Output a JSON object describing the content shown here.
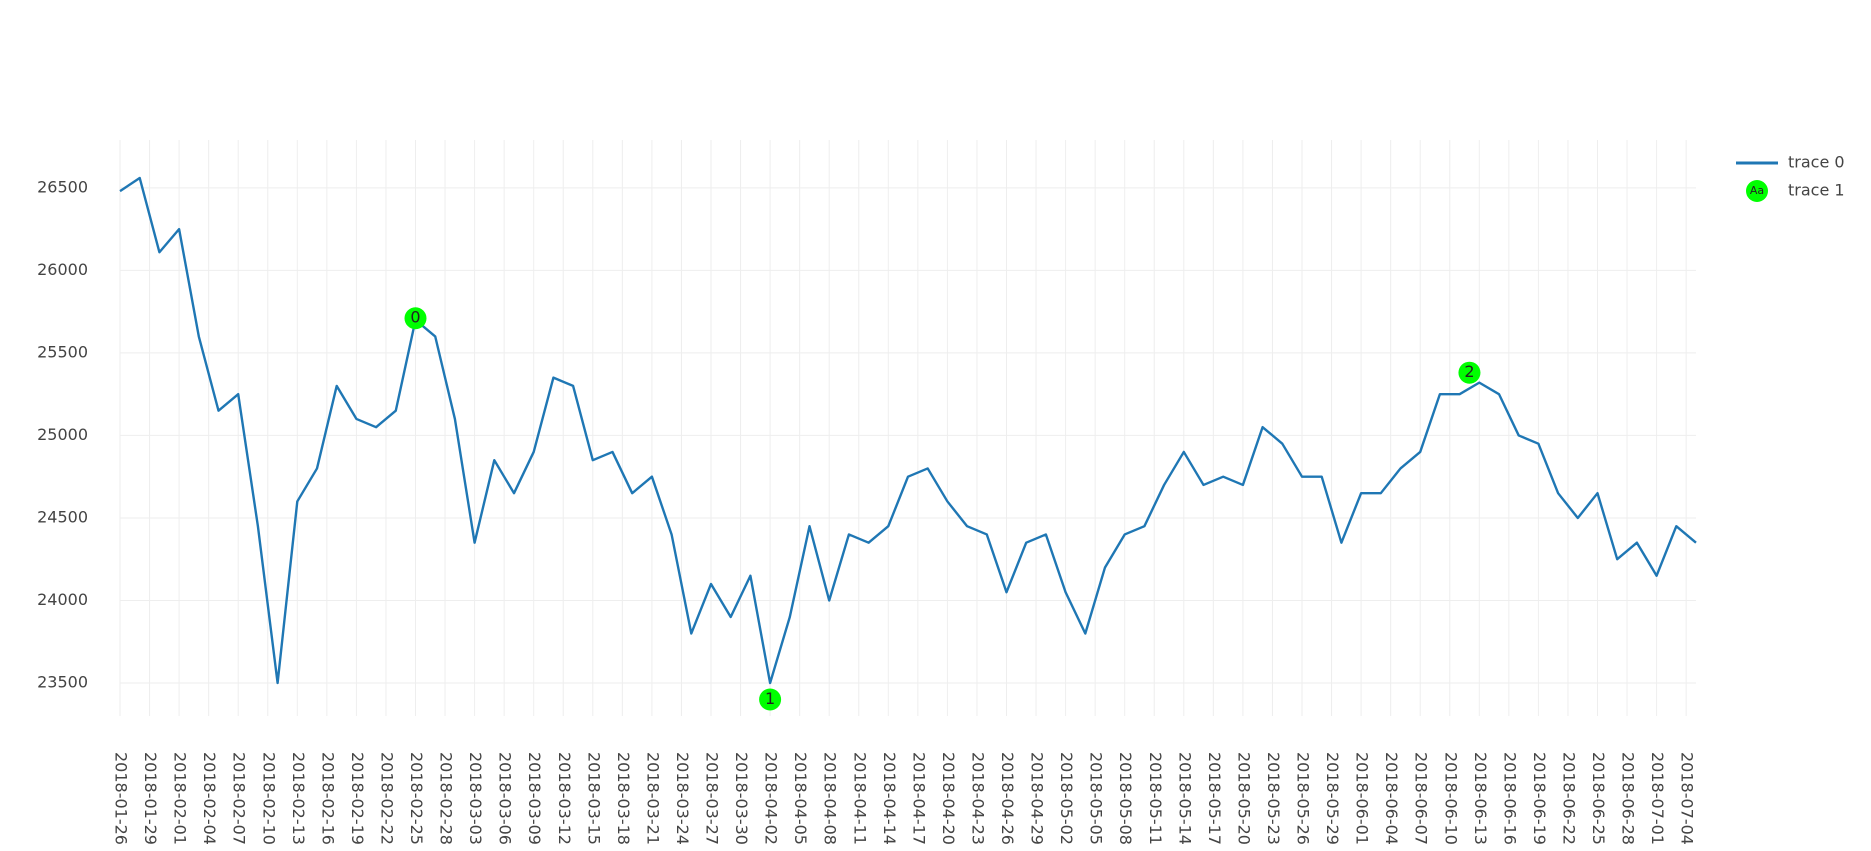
{
  "chart_data": {
    "type": "line",
    "xlim": [
      "2018-01-26",
      "2018-07-05"
    ],
    "xticks": [
      "2018-01-26",
      "2018-01-29",
      "2018-02-01",
      "2018-02-04",
      "2018-02-07",
      "2018-02-10",
      "2018-02-13",
      "2018-02-16",
      "2018-02-19",
      "2018-02-22",
      "2018-02-25",
      "2018-02-28",
      "2018-03-03",
      "2018-03-06",
      "2018-03-09",
      "2018-03-12",
      "2018-03-15",
      "2018-03-18",
      "2018-03-21",
      "2018-03-24",
      "2018-03-27",
      "2018-03-30",
      "2018-04-02",
      "2018-04-05",
      "2018-04-08",
      "2018-04-11",
      "2018-04-14",
      "2018-04-17",
      "2018-04-20",
      "2018-04-23",
      "2018-04-26",
      "2018-04-29",
      "2018-05-02",
      "2018-05-05",
      "2018-05-08",
      "2018-05-11",
      "2018-05-14",
      "2018-05-17",
      "2018-05-20",
      "2018-05-23",
      "2018-05-26",
      "2018-05-29",
      "2018-06-01",
      "2018-06-04",
      "2018-06-07",
      "2018-06-10",
      "2018-06-13",
      "2018-06-16",
      "2018-06-19",
      "2018-06-22",
      "2018-06-25",
      "2018-06-28",
      "2018-07-01",
      "2018-07-04"
    ],
    "ylim": [
      23300,
      26790
    ],
    "yticks": [
      23500,
      24000,
      24500,
      25000,
      25500,
      26000,
      26500
    ],
    "grid": true,
    "legend": "right",
    "series": [
      {
        "name": "trace 0",
        "mode": "lines",
        "color": "#1f77b4",
        "x": [
          "2018-01-26",
          "2018-01-28",
          "2018-01-30",
          "2018-02-01",
          "2018-02-03",
          "2018-02-05",
          "2018-02-07",
          "2018-02-09",
          "2018-02-11",
          "2018-02-13",
          "2018-02-15",
          "2018-02-17",
          "2018-02-19",
          "2018-02-21",
          "2018-02-23",
          "2018-02-25",
          "2018-02-27",
          "2018-03-01",
          "2018-03-03",
          "2018-03-05",
          "2018-03-07",
          "2018-03-09",
          "2018-03-11",
          "2018-03-13",
          "2018-03-15",
          "2018-03-17",
          "2018-03-19",
          "2018-03-21",
          "2018-03-23",
          "2018-03-25",
          "2018-03-27",
          "2018-03-29",
          "2018-03-31",
          "2018-04-02",
          "2018-04-04",
          "2018-04-06",
          "2018-04-08",
          "2018-04-10",
          "2018-04-12",
          "2018-04-14",
          "2018-04-16",
          "2018-04-18",
          "2018-04-20",
          "2018-04-22",
          "2018-04-24",
          "2018-04-26",
          "2018-04-28",
          "2018-04-30",
          "2018-05-02",
          "2018-05-04",
          "2018-05-06",
          "2018-05-08",
          "2018-05-10",
          "2018-05-12",
          "2018-05-14",
          "2018-05-16",
          "2018-05-18",
          "2018-05-20",
          "2018-05-22",
          "2018-05-24",
          "2018-05-26",
          "2018-05-28",
          "2018-05-30",
          "2018-06-01",
          "2018-06-03",
          "2018-06-05",
          "2018-06-07",
          "2018-06-09",
          "2018-06-11",
          "2018-06-13",
          "2018-06-15",
          "2018-06-17",
          "2018-06-19",
          "2018-06-21",
          "2018-06-23",
          "2018-06-25",
          "2018-06-27",
          "2018-06-29",
          "2018-07-01",
          "2018-07-03",
          "2018-07-05"
        ],
        "values": [
          26480,
          26560,
          26110,
          26250,
          25600,
          25150,
          25250,
          24450,
          23500,
          24600,
          24800,
          25300,
          25100,
          25050,
          25150,
          25700,
          25600,
          25100,
          24350,
          24850,
          24650,
          24900,
          25350,
          25300,
          24850,
          24900,
          24650,
          24750,
          24400,
          23800,
          24100,
          23900,
          24150,
          23500,
          23900,
          24450,
          24000,
          24400,
          24350,
          24450,
          24750,
          24800,
          24600,
          24450,
          24400,
          24050,
          24350,
          24400,
          24050,
          23800,
          24200,
          24400,
          24450,
          24700,
          24900,
          24700,
          24750,
          24700,
          25050,
          24950,
          24750,
          24750,
          24350,
          24650,
          24650,
          24800,
          24900,
          25250,
          25250,
          25320,
          25250,
          25000,
          24950,
          24650,
          24500,
          24650,
          24250,
          24350,
          24150,
          24450,
          24350
        ]
      },
      {
        "name": "trace 1",
        "mode": "markers+text",
        "color": "#00ff00",
        "legend_symbol": "Aa",
        "x": [
          "2018-02-25",
          "2018-04-02",
          "2018-06-12"
        ],
        "values": [
          25710,
          23400,
          25380
        ],
        "text": [
          "0",
          "1",
          "2"
        ]
      }
    ]
  }
}
